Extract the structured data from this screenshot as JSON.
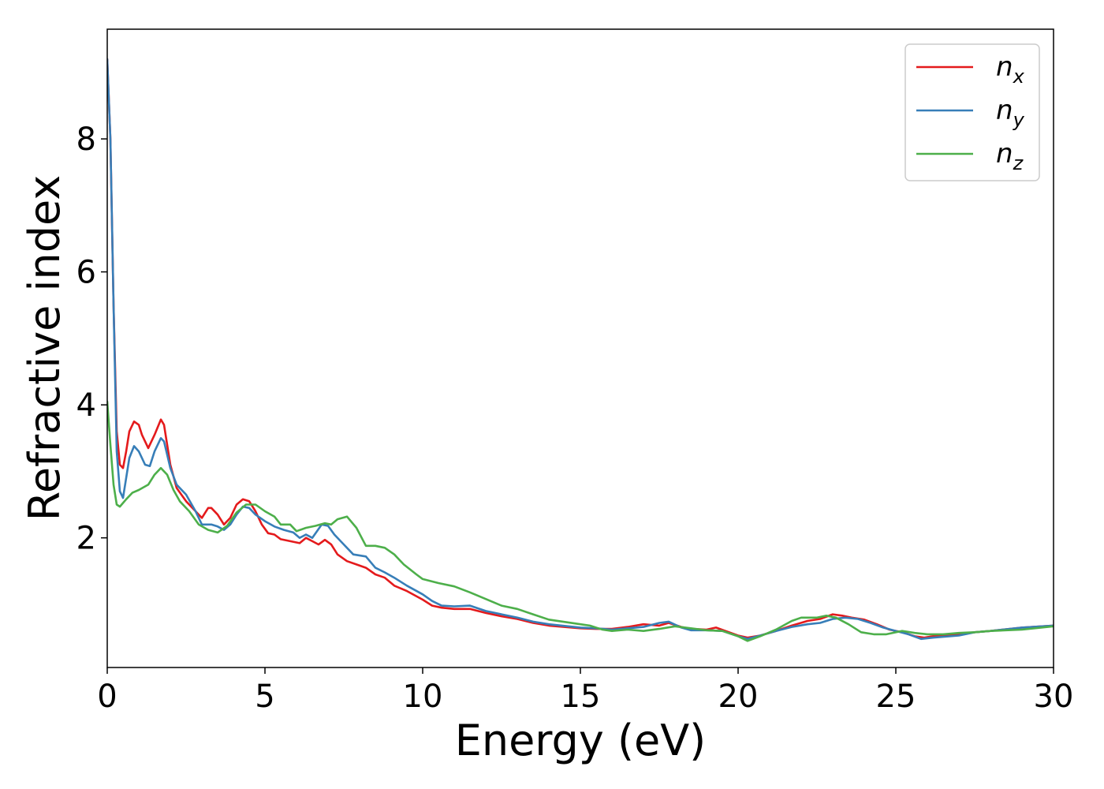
{
  "chart_data": {
    "type": "line",
    "title": "",
    "xlabel": "Energy (eV)",
    "ylabel": "Refractive index",
    "xlim": [
      0,
      30
    ],
    "ylim": [
      0.05,
      9.65
    ],
    "x_ticks": [
      0,
      5,
      10,
      15,
      20,
      25,
      30
    ],
    "y_ticks": [
      2,
      4,
      6,
      8
    ],
    "grid": false,
    "legend_position": "top-right",
    "series": [
      {
        "name": "n",
        "subscript": "x",
        "color": "#e41a1c",
        "points": [
          [
            0.0,
            9.2
          ],
          [
            0.1,
            8.0
          ],
          [
            0.2,
            5.5
          ],
          [
            0.3,
            3.6
          ],
          [
            0.4,
            3.1
          ],
          [
            0.5,
            3.05
          ],
          [
            0.6,
            3.3
          ],
          [
            0.7,
            3.6
          ],
          [
            0.85,
            3.75
          ],
          [
            1.0,
            3.7
          ],
          [
            1.1,
            3.55
          ],
          [
            1.3,
            3.35
          ],
          [
            1.5,
            3.55
          ],
          [
            1.7,
            3.78
          ],
          [
            1.8,
            3.7
          ],
          [
            2.0,
            3.1
          ],
          [
            2.2,
            2.75
          ],
          [
            2.5,
            2.55
          ],
          [
            2.8,
            2.4
          ],
          [
            3.0,
            2.3
          ],
          [
            3.2,
            2.45
          ],
          [
            3.3,
            2.45
          ],
          [
            3.5,
            2.35
          ],
          [
            3.7,
            2.2
          ],
          [
            3.9,
            2.3
          ],
          [
            4.1,
            2.5
          ],
          [
            4.3,
            2.58
          ],
          [
            4.5,
            2.55
          ],
          [
            4.7,
            2.4
          ],
          [
            4.9,
            2.2
          ],
          [
            5.1,
            2.07
          ],
          [
            5.3,
            2.05
          ],
          [
            5.5,
            1.98
          ],
          [
            5.8,
            1.95
          ],
          [
            6.1,
            1.92
          ],
          [
            6.3,
            2.0
          ],
          [
            6.5,
            1.95
          ],
          [
            6.7,
            1.9
          ],
          [
            6.9,
            1.97
          ],
          [
            7.1,
            1.9
          ],
          [
            7.3,
            1.75
          ],
          [
            7.6,
            1.65
          ],
          [
            7.9,
            1.6
          ],
          [
            8.2,
            1.55
          ],
          [
            8.5,
            1.45
          ],
          [
            8.8,
            1.4
          ],
          [
            9.1,
            1.28
          ],
          [
            9.5,
            1.2
          ],
          [
            10.0,
            1.07
          ],
          [
            10.3,
            0.98
          ],
          [
            10.6,
            0.95
          ],
          [
            11.0,
            0.93
          ],
          [
            11.5,
            0.93
          ],
          [
            12.0,
            0.87
          ],
          [
            12.5,
            0.82
          ],
          [
            13.0,
            0.78
          ],
          [
            13.5,
            0.72
          ],
          [
            14.0,
            0.68
          ],
          [
            15.0,
            0.64
          ],
          [
            15.5,
            0.63
          ],
          [
            16.0,
            0.63
          ],
          [
            16.5,
            0.66
          ],
          [
            17.0,
            0.7
          ],
          [
            17.5,
            0.68
          ],
          [
            17.8,
            0.72
          ],
          [
            18.2,
            0.66
          ],
          [
            18.5,
            0.63
          ],
          [
            19.0,
            0.62
          ],
          [
            19.3,
            0.65
          ],
          [
            19.6,
            0.6
          ],
          [
            20.0,
            0.53
          ],
          [
            20.3,
            0.5
          ],
          [
            20.7,
            0.53
          ],
          [
            21.2,
            0.6
          ],
          [
            21.7,
            0.68
          ],
          [
            22.2,
            0.75
          ],
          [
            22.6,
            0.78
          ],
          [
            23.0,
            0.85
          ],
          [
            23.3,
            0.83
          ],
          [
            23.6,
            0.8
          ],
          [
            24.0,
            0.77
          ],
          [
            24.4,
            0.7
          ],
          [
            24.8,
            0.62
          ],
          [
            25.2,
            0.58
          ],
          [
            25.6,
            0.52
          ],
          [
            25.9,
            0.5
          ],
          [
            26.3,
            0.53
          ],
          [
            27.0,
            0.55
          ],
          [
            27.5,
            0.58
          ],
          [
            28.0,
            0.6
          ],
          [
            29.0,
            0.65
          ],
          [
            30.0,
            0.68
          ]
        ]
      },
      {
        "name": "n",
        "subscript": "y",
        "color": "#377eb8",
        "points": [
          [
            0.0,
            9.2
          ],
          [
            0.1,
            8.0
          ],
          [
            0.2,
            5.5
          ],
          [
            0.3,
            3.3
          ],
          [
            0.4,
            2.7
          ],
          [
            0.5,
            2.6
          ],
          [
            0.6,
            2.9
          ],
          [
            0.7,
            3.2
          ],
          [
            0.85,
            3.38
          ],
          [
            1.0,
            3.3
          ],
          [
            1.2,
            3.1
          ],
          [
            1.35,
            3.08
          ],
          [
            1.5,
            3.3
          ],
          [
            1.7,
            3.5
          ],
          [
            1.8,
            3.45
          ],
          [
            2.0,
            3.05
          ],
          [
            2.2,
            2.8
          ],
          [
            2.5,
            2.65
          ],
          [
            2.8,
            2.4
          ],
          [
            3.0,
            2.2
          ],
          [
            3.3,
            2.2
          ],
          [
            3.5,
            2.17
          ],
          [
            3.7,
            2.12
          ],
          [
            3.9,
            2.2
          ],
          [
            4.1,
            2.35
          ],
          [
            4.3,
            2.47
          ],
          [
            4.5,
            2.45
          ],
          [
            4.7,
            2.35
          ],
          [
            5.0,
            2.25
          ],
          [
            5.3,
            2.17
          ],
          [
            5.6,
            2.12
          ],
          [
            5.9,
            2.08
          ],
          [
            6.1,
            2.0
          ],
          [
            6.3,
            2.05
          ],
          [
            6.5,
            2.0
          ],
          [
            6.8,
            2.2
          ],
          [
            7.0,
            2.18
          ],
          [
            7.2,
            2.05
          ],
          [
            7.5,
            1.9
          ],
          [
            7.8,
            1.75
          ],
          [
            8.2,
            1.72
          ],
          [
            8.5,
            1.55
          ],
          [
            8.8,
            1.48
          ],
          [
            9.1,
            1.4
          ],
          [
            9.5,
            1.28
          ],
          [
            10.0,
            1.15
          ],
          [
            10.3,
            1.05
          ],
          [
            10.6,
            0.98
          ],
          [
            11.0,
            0.97
          ],
          [
            11.5,
            0.98
          ],
          [
            12.0,
            0.9
          ],
          [
            12.5,
            0.85
          ],
          [
            13.0,
            0.8
          ],
          [
            13.5,
            0.74
          ],
          [
            14.0,
            0.7
          ],
          [
            15.0,
            0.65
          ],
          [
            15.5,
            0.64
          ],
          [
            16.0,
            0.62
          ],
          [
            16.5,
            0.64
          ],
          [
            17.0,
            0.66
          ],
          [
            17.5,
            0.72
          ],
          [
            17.8,
            0.74
          ],
          [
            18.2,
            0.65
          ],
          [
            18.5,
            0.61
          ],
          [
            19.0,
            0.61
          ],
          [
            19.5,
            0.6
          ],
          [
            20.0,
            0.52
          ],
          [
            20.3,
            0.48
          ],
          [
            20.7,
            0.53
          ],
          [
            21.2,
            0.6
          ],
          [
            21.7,
            0.66
          ],
          [
            22.2,
            0.7
          ],
          [
            22.6,
            0.72
          ],
          [
            23.0,
            0.78
          ],
          [
            23.4,
            0.8
          ],
          [
            23.8,
            0.78
          ],
          [
            24.2,
            0.72
          ],
          [
            24.6,
            0.65
          ],
          [
            25.0,
            0.6
          ],
          [
            25.4,
            0.55
          ],
          [
            25.8,
            0.48
          ],
          [
            26.2,
            0.5
          ],
          [
            27.0,
            0.53
          ],
          [
            27.5,
            0.58
          ],
          [
            28.0,
            0.6
          ],
          [
            29.0,
            0.65
          ],
          [
            30.0,
            0.68
          ]
        ]
      },
      {
        "name": "n",
        "subscript": "z",
        "color": "#4daf4a",
        "points": [
          [
            0.0,
            4.05
          ],
          [
            0.1,
            3.4
          ],
          [
            0.2,
            2.8
          ],
          [
            0.3,
            2.5
          ],
          [
            0.4,
            2.47
          ],
          [
            0.6,
            2.58
          ],
          [
            0.8,
            2.68
          ],
          [
            1.0,
            2.72
          ],
          [
            1.3,
            2.8
          ],
          [
            1.5,
            2.95
          ],
          [
            1.7,
            3.05
          ],
          [
            1.9,
            2.95
          ],
          [
            2.1,
            2.72
          ],
          [
            2.3,
            2.55
          ],
          [
            2.6,
            2.4
          ],
          [
            2.9,
            2.2
          ],
          [
            3.2,
            2.12
          ],
          [
            3.5,
            2.08
          ],
          [
            3.8,
            2.18
          ],
          [
            4.1,
            2.38
          ],
          [
            4.4,
            2.5
          ],
          [
            4.7,
            2.5
          ],
          [
            5.0,
            2.4
          ],
          [
            5.3,
            2.32
          ],
          [
            5.5,
            2.2
          ],
          [
            5.8,
            2.2
          ],
          [
            6.0,
            2.1
          ],
          [
            6.3,
            2.15
          ],
          [
            6.6,
            2.18
          ],
          [
            6.9,
            2.22
          ],
          [
            7.1,
            2.2
          ],
          [
            7.3,
            2.28
          ],
          [
            7.6,
            2.32
          ],
          [
            7.9,
            2.15
          ],
          [
            8.2,
            1.88
          ],
          [
            8.5,
            1.88
          ],
          [
            8.8,
            1.85
          ],
          [
            9.1,
            1.75
          ],
          [
            9.4,
            1.6
          ],
          [
            9.8,
            1.45
          ],
          [
            10.0,
            1.38
          ],
          [
            10.5,
            1.32
          ],
          [
            11.0,
            1.27
          ],
          [
            11.5,
            1.18
          ],
          [
            12.0,
            1.08
          ],
          [
            12.5,
            0.98
          ],
          [
            13.0,
            0.93
          ],
          [
            13.5,
            0.85
          ],
          [
            14.0,
            0.77
          ],
          [
            15.0,
            0.7
          ],
          [
            15.3,
            0.68
          ],
          [
            15.7,
            0.62
          ],
          [
            16.0,
            0.6
          ],
          [
            16.5,
            0.62
          ],
          [
            17.0,
            0.6
          ],
          [
            17.5,
            0.63
          ],
          [
            18.0,
            0.67
          ],
          [
            18.5,
            0.64
          ],
          [
            19.0,
            0.61
          ],
          [
            19.5,
            0.6
          ],
          [
            20.0,
            0.52
          ],
          [
            20.3,
            0.45
          ],
          [
            20.7,
            0.52
          ],
          [
            21.2,
            0.62
          ],
          [
            21.7,
            0.75
          ],
          [
            22.0,
            0.8
          ],
          [
            22.5,
            0.8
          ],
          [
            22.8,
            0.83
          ],
          [
            23.1,
            0.8
          ],
          [
            23.5,
            0.7
          ],
          [
            23.9,
            0.58
          ],
          [
            24.3,
            0.55
          ],
          [
            24.7,
            0.55
          ],
          [
            25.2,
            0.6
          ],
          [
            25.6,
            0.57
          ],
          [
            26.0,
            0.55
          ],
          [
            26.5,
            0.55
          ],
          [
            27.0,
            0.57
          ],
          [
            27.5,
            0.58
          ],
          [
            28.0,
            0.6
          ],
          [
            29.0,
            0.62
          ],
          [
            30.0,
            0.67
          ]
        ]
      }
    ]
  }
}
